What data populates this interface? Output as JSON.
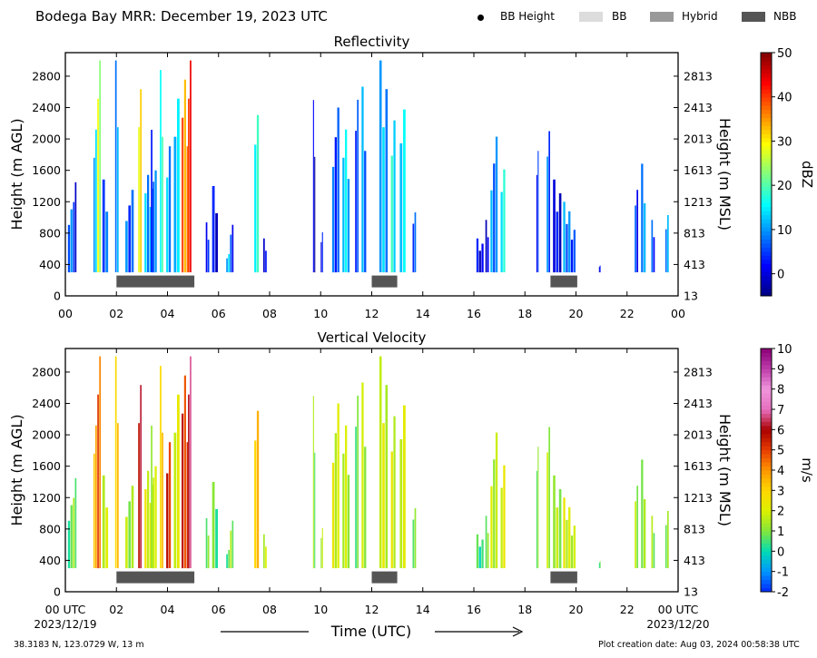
{
  "header": {
    "title": "Bodega Bay MRR:  December 19, 2023 UTC",
    "legend": [
      {
        "label": "BB Height",
        "kind": "dot",
        "color": "#000000"
      },
      {
        "label": "BB",
        "kind": "swatch",
        "color": "#dcdcdc"
      },
      {
        "label": "Hybrid",
        "kind": "swatch",
        "color": "#999999"
      },
      {
        "label": "NBB",
        "kind": "swatch",
        "color": "#555555"
      }
    ]
  },
  "footer": {
    "location": "38.3183 N, 123.0729 W, 13 m",
    "creation": "Plot creation date: Aug 03, 2024 00:58:38 UTC",
    "x_axis_title": "Time (UTC)",
    "start_label_time": "00 UTC",
    "start_label_date": "2023/12/19",
    "end_label_time": "00 UTC",
    "end_label_date": "2023/12/20"
  },
  "chart_data": [
    {
      "type": "heatmap",
      "title": "Reflectivity",
      "xlabel": "",
      "ylabel": "Height (m AGL)",
      "ylabel_right": "Height (m MSL)",
      "x_ticks": [
        "00",
        "02",
        "04",
        "06",
        "08",
        "10",
        "12",
        "14",
        "16",
        "18",
        "20",
        "22",
        "00"
      ],
      "xlim": [
        0,
        24
      ],
      "y_ticks": [
        0,
        400,
        800,
        1200,
        1600,
        2000,
        2400,
        2800
      ],
      "y_ticks_right": [
        "13",
        "413",
        "813",
        "1213",
        "1613",
        "2013",
        "2413",
        "2813"
      ],
      "ylim": [
        0,
        3100
      ],
      "colorbar": {
        "label": "dBZ",
        "range": [
          -5,
          50
        ],
        "ticks": [
          0,
          10,
          20,
          30,
          40,
          50
        ],
        "colormap": "jet"
      },
      "bb_periods": [
        {
          "start": 2.0,
          "end": 5.05,
          "type": "NBB"
        },
        {
          "start": 12.0,
          "end": 13.0,
          "type": "NBB"
        },
        {
          "start": 19.0,
          "end": 20.05,
          "type": "NBB"
        }
      ],
      "echoes": [
        {
          "t": 0.1,
          "w": 0.2,
          "top": 1400,
          "val": 10
        },
        {
          "t": 0.3,
          "w": 0.15,
          "top": 1700,
          "val": 3
        },
        {
          "t": 1.1,
          "w": 0.15,
          "top": 2300,
          "val": 12
        },
        {
          "t": 1.25,
          "w": 0.15,
          "top": 3000,
          "val": 25
        },
        {
          "t": 1.45,
          "w": 0.25,
          "top": 1600,
          "val": 5
        },
        {
          "t": 1.95,
          "w": 0.15,
          "top": 3000,
          "val": 12
        },
        {
          "t": 2.35,
          "w": 0.35,
          "top": 1400,
          "val": 8
        },
        {
          "t": 2.85,
          "w": 0.15,
          "top": 3000,
          "val": 30
        },
        {
          "t": 3.1,
          "w": 0.5,
          "top": 1600,
          "val": 10
        },
        {
          "t": 3.35,
          "w": 0.15,
          "top": 2400,
          "val": 3
        },
        {
          "t": 3.7,
          "w": 0.15,
          "top": 3000,
          "val": 20
        },
        {
          "t": 3.95,
          "w": 0.2,
          "top": 2500,
          "val": 12
        },
        {
          "t": 4.25,
          "w": 0.25,
          "top": 3000,
          "val": 13
        },
        {
          "t": 4.55,
          "w": 0.3,
          "top": 3000,
          "val": 35
        },
        {
          "t": 4.8,
          "w": 0.15,
          "top": 3000,
          "val": 40
        },
        {
          "t": 5.5,
          "w": 0.15,
          "top": 1000,
          "val": 5
        },
        {
          "t": 5.75,
          "w": 0.25,
          "top": 1400,
          "val": 2
        },
        {
          "t": 6.3,
          "w": 0.15,
          "top": 600,
          "val": 12
        },
        {
          "t": 6.45,
          "w": 0.15,
          "top": 1000,
          "val": 3
        },
        {
          "t": 7.4,
          "w": 0.2,
          "top": 2400,
          "val": 15
        },
        {
          "t": 7.75,
          "w": 0.15,
          "top": 800,
          "val": 3
        },
        {
          "t": 9.7,
          "w": 0.1,
          "top": 2600,
          "val": 0
        },
        {
          "t": 10.0,
          "w": 0.1,
          "top": 1000,
          "val": 2
        },
        {
          "t": 10.45,
          "w": 0.3,
          "top": 2400,
          "val": 5
        },
        {
          "t": 10.85,
          "w": 0.3,
          "top": 2300,
          "val": 12
        },
        {
          "t": 11.35,
          "w": 0.15,
          "top": 2500,
          "val": 7
        },
        {
          "t": 11.6,
          "w": 0.2,
          "top": 2900,
          "val": 10
        },
        {
          "t": 12.3,
          "w": 0.35,
          "top": 3000,
          "val": 12
        },
        {
          "t": 12.75,
          "w": 0.2,
          "top": 2800,
          "val": 15
        },
        {
          "t": 13.1,
          "w": 0.25,
          "top": 2700,
          "val": 12
        },
        {
          "t": 13.6,
          "w": 0.15,
          "top": 1100,
          "val": 8
        },
        {
          "t": 16.1,
          "w": 0.3,
          "top": 800,
          "val": 2
        },
        {
          "t": 16.45,
          "w": 0.15,
          "top": 1000,
          "val": 0
        },
        {
          "t": 16.65,
          "w": 0.3,
          "top": 2200,
          "val": 8
        },
        {
          "t": 17.05,
          "w": 0.2,
          "top": 1900,
          "val": 14
        },
        {
          "t": 18.45,
          "w": 0.1,
          "top": 2000,
          "val": 5
        },
        {
          "t": 18.85,
          "w": 0.15,
          "top": 2100,
          "val": 8
        },
        {
          "t": 19.1,
          "w": 0.35,
          "top": 1600,
          "val": 2
        },
        {
          "t": 19.5,
          "w": 0.3,
          "top": 1200,
          "val": 8
        },
        {
          "t": 19.8,
          "w": 0.2,
          "top": 1000,
          "val": 3
        },
        {
          "t": 20.9,
          "w": 0.05,
          "top": 400,
          "val": 3
        },
        {
          "t": 22.3,
          "w": 0.15,
          "top": 1400,
          "val": 5
        },
        {
          "t": 22.55,
          "w": 0.2,
          "top": 1900,
          "val": 10
        },
        {
          "t": 22.95,
          "w": 0.15,
          "top": 1000,
          "val": 4
        },
        {
          "t": 23.5,
          "w": 0.15,
          "top": 1300,
          "val": 8
        }
      ]
    },
    {
      "type": "heatmap",
      "title": "Vertical Velocity",
      "xlabel": "Time (UTC)",
      "ylabel": "Height (m AGL)",
      "ylabel_right": "Height (m MSL)",
      "x_ticks": [
        "00 UTC",
        "02",
        "04",
        "06",
        "08",
        "10",
        "12",
        "14",
        "16",
        "18",
        "20",
        "22",
        "00 UTC"
      ],
      "xlim": [
        0,
        24
      ],
      "y_ticks": [
        0,
        400,
        800,
        1200,
        1600,
        2000,
        2400,
        2800
      ],
      "y_ticks_right": [
        "13",
        "413",
        "813",
        "1213",
        "1613",
        "2013",
        "2413",
        "2813"
      ],
      "ylim": [
        0,
        3100
      ],
      "colorbar": {
        "label": "m/s",
        "range": [
          -2,
          10
        ],
        "ticks": [
          -2,
          -1,
          0,
          1,
          2,
          3,
          4,
          5,
          6,
          7,
          8,
          9,
          10
        ],
        "colormap": "velocity"
      },
      "bb_periods": [
        {
          "start": 2.0,
          "end": 5.05,
          "type": "NBB"
        },
        {
          "start": 12.0,
          "end": 13.0,
          "type": "NBB"
        },
        {
          "start": 19.0,
          "end": 20.05,
          "type": "NBB"
        }
      ],
      "echoes": [
        {
          "t": 0.1,
          "w": 0.2,
          "top": 1400,
          "val": 0.8
        },
        {
          "t": 0.3,
          "w": 0.15,
          "top": 1700,
          "val": 1.2
        },
        {
          "t": 1.1,
          "w": 0.15,
          "top": 2300,
          "val": 3.5
        },
        {
          "t": 1.25,
          "w": 0.15,
          "top": 3000,
          "val": 4.5
        },
        {
          "t": 1.45,
          "w": 0.25,
          "top": 1600,
          "val": 1.5
        },
        {
          "t": 1.95,
          "w": 0.15,
          "top": 3000,
          "val": 3.5
        },
        {
          "t": 2.35,
          "w": 0.35,
          "top": 1400,
          "val": 1.5
        },
        {
          "t": 2.85,
          "w": 0.15,
          "top": 3000,
          "val": 6.0
        },
        {
          "t": 3.1,
          "w": 0.5,
          "top": 1600,
          "val": 2.0
        },
        {
          "t": 3.35,
          "w": 0.15,
          "top": 2400,
          "val": 1.2
        },
        {
          "t": 3.7,
          "w": 0.15,
          "top": 3000,
          "val": 3.5
        },
        {
          "t": 3.95,
          "w": 0.2,
          "top": 2500,
          "val": 5.5
        },
        {
          "t": 4.25,
          "w": 0.25,
          "top": 3000,
          "val": 2.0
        },
        {
          "t": 4.55,
          "w": 0.3,
          "top": 3000,
          "val": 5.0
        },
        {
          "t": 4.8,
          "w": 0.15,
          "top": 3000,
          "val": 6.2
        },
        {
          "t": 5.5,
          "w": 0.15,
          "top": 1000,
          "val": 1.2
        },
        {
          "t": 5.75,
          "w": 0.25,
          "top": 1400,
          "val": 0.8
        },
        {
          "t": 6.3,
          "w": 0.15,
          "top": 600,
          "val": 0.5
        },
        {
          "t": 6.45,
          "w": 0.15,
          "top": 1000,
          "val": 1.0
        },
        {
          "t": 7.4,
          "w": 0.2,
          "top": 2400,
          "val": 3.0
        },
        {
          "t": 7.75,
          "w": 0.15,
          "top": 800,
          "val": 2.0
        },
        {
          "t": 9.7,
          "w": 0.1,
          "top": 2600,
          "val": 1.2
        },
        {
          "t": 10.0,
          "w": 0.1,
          "top": 1000,
          "val": 1.5
        },
        {
          "t": 10.45,
          "w": 0.3,
          "top": 2400,
          "val": 1.8
        },
        {
          "t": 10.85,
          "w": 0.3,
          "top": 2300,
          "val": 1.4
        },
        {
          "t": 11.35,
          "w": 0.15,
          "top": 2500,
          "val": 1.0
        },
        {
          "t": 11.6,
          "w": 0.2,
          "top": 2900,
          "val": 1.6
        },
        {
          "t": 12.3,
          "w": 0.35,
          "top": 3000,
          "val": 2.0
        },
        {
          "t": 12.75,
          "w": 0.2,
          "top": 2800,
          "val": 1.8
        },
        {
          "t": 13.1,
          "w": 0.25,
          "top": 2700,
          "val": 1.6
        },
        {
          "t": 13.6,
          "w": 0.15,
          "top": 1100,
          "val": 1.2
        },
        {
          "t": 16.1,
          "w": 0.3,
          "top": 800,
          "val": 0.5
        },
        {
          "t": 16.45,
          "w": 0.15,
          "top": 1000,
          "val": 1.0
        },
        {
          "t": 16.65,
          "w": 0.3,
          "top": 2200,
          "val": 1.5
        },
        {
          "t": 17.05,
          "w": 0.2,
          "top": 1900,
          "val": 1.8
        },
        {
          "t": 18.45,
          "w": 0.1,
          "top": 2000,
          "val": 1.2
        },
        {
          "t": 18.85,
          "w": 0.15,
          "top": 2100,
          "val": 1.6
        },
        {
          "t": 19.1,
          "w": 0.35,
          "top": 1600,
          "val": 1.5
        },
        {
          "t": 19.5,
          "w": 0.3,
          "top": 1200,
          "val": 1.8
        },
        {
          "t": 19.8,
          "w": 0.2,
          "top": 1000,
          "val": 1.3
        },
        {
          "t": 20.9,
          "w": 0.05,
          "top": 400,
          "val": 0.8
        },
        {
          "t": 22.3,
          "w": 0.15,
          "top": 1400,
          "val": 1.5
        },
        {
          "t": 22.55,
          "w": 0.2,
          "top": 1900,
          "val": 1.2
        },
        {
          "t": 22.95,
          "w": 0.15,
          "top": 1000,
          "val": 1.0
        },
        {
          "t": 23.5,
          "w": 0.15,
          "top": 1300,
          "val": 0.8
        }
      ]
    }
  ]
}
